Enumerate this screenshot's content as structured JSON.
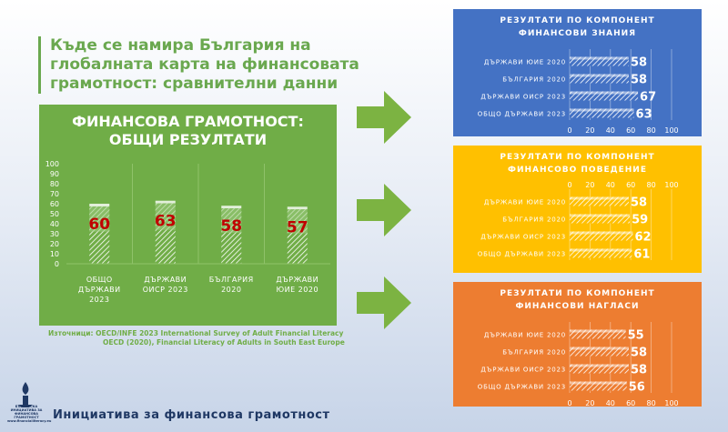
{
  "title": "Къде се намира България на глобалната карта на финансовата грамотност: сравнителни данни",
  "sources": {
    "label": "Източници:",
    "line1": "OECD/INFE 2023 International Survey of Adult Financial Literacy",
    "line2": "OECD (2020), Financial Literacy of Adults in South East Europe"
  },
  "footer": "Инициатива за финансова грамотност",
  "logo": {
    "icon": "candle-icon",
    "text": "БЪЛГАРСКА ИНИЦИАТИВА ЗА ФИНАНСОВА ГРАМОТНОСТ",
    "url": "www.financialliteracy.eu"
  },
  "colors": {
    "green": "#70ad47",
    "blue": "#4472c4",
    "yellow": "#ffc000",
    "orange": "#ed7d31",
    "value_red": "#c00000"
  },
  "chart_data": [
    {
      "type": "bar",
      "title_lines": [
        "ФИНАНСОВА ГРАМОТНОСТ:",
        "ОБЩИ РЕЗУЛТАТИ"
      ],
      "categories": [
        [
          "ОБЩО",
          "ДЪРЖАВИ",
          "2023"
        ],
        [
          "ДЪРЖАВИ",
          "ОИСР 2023"
        ],
        [
          "БЪЛГАРИЯ",
          "2020"
        ],
        [
          "ДЪРЖАВИ",
          "ЮИЕ 2020"
        ]
      ],
      "values": [
        60,
        63,
        58,
        57
      ],
      "yticks": [
        0,
        10,
        20,
        30,
        40,
        50,
        60,
        70,
        80,
        90,
        100
      ],
      "ylim": [
        0,
        100
      ]
    },
    {
      "type": "bar",
      "orientation": "horizontal",
      "title_lines": [
        "РЕЗУЛТАТИ ПО КОМПОНЕНТ",
        "ФИНАНСОВИ ЗНАНИЯ"
      ],
      "categories": [
        "ДЪРЖАВИ ЮИЕ 2020",
        "БЪЛГАРИЯ 2020",
        "ДЪРЖАВИ ОИСР 2023",
        "ОБЩО ДЪРЖАВИ 2023"
      ],
      "values": [
        58,
        58,
        67,
        63
      ],
      "xticks": [
        0,
        20,
        40,
        60,
        80,
        100
      ],
      "xlim": [
        0,
        100
      ],
      "tick_position": "bottom"
    },
    {
      "type": "bar",
      "orientation": "horizontal",
      "title_lines": [
        "РЕЗУЛТАТИ ПО КОМПОНЕНТ",
        "ФИНАНСОВО ПОВЕДЕНИЕ"
      ],
      "categories": [
        "ДЪРЖАВИ ЮИЕ 2020",
        "БЪЛГАРИЯ 2020",
        "ДЪРЖАВИ ОИСР 2023",
        "ОБЩО ДЪРЖАВИ 2023"
      ],
      "values": [
        58,
        59,
        62,
        61
      ],
      "xticks": [
        0,
        20,
        40,
        60,
        80,
        100
      ],
      "xlim": [
        0,
        100
      ],
      "tick_position": "top"
    },
    {
      "type": "bar",
      "orientation": "horizontal",
      "title_lines": [
        "РЕЗУЛТАТИ ПО КОМПОНЕНТ",
        "ФИНАНСОВИ НАГЛАСИ"
      ],
      "categories": [
        "ДЪРЖАВИ ЮИЕ 2020",
        "БЪЛГАРИЯ 2020",
        "ДЪРЖАВИ ОИСР 2023",
        "ОБЩО ДЪРЖАВИ 2023"
      ],
      "values": [
        55,
        58,
        58,
        56
      ],
      "xticks": [
        0,
        20,
        40,
        60,
        80,
        100
      ],
      "xlim": [
        0,
        100
      ],
      "tick_position": "bottom"
    }
  ]
}
